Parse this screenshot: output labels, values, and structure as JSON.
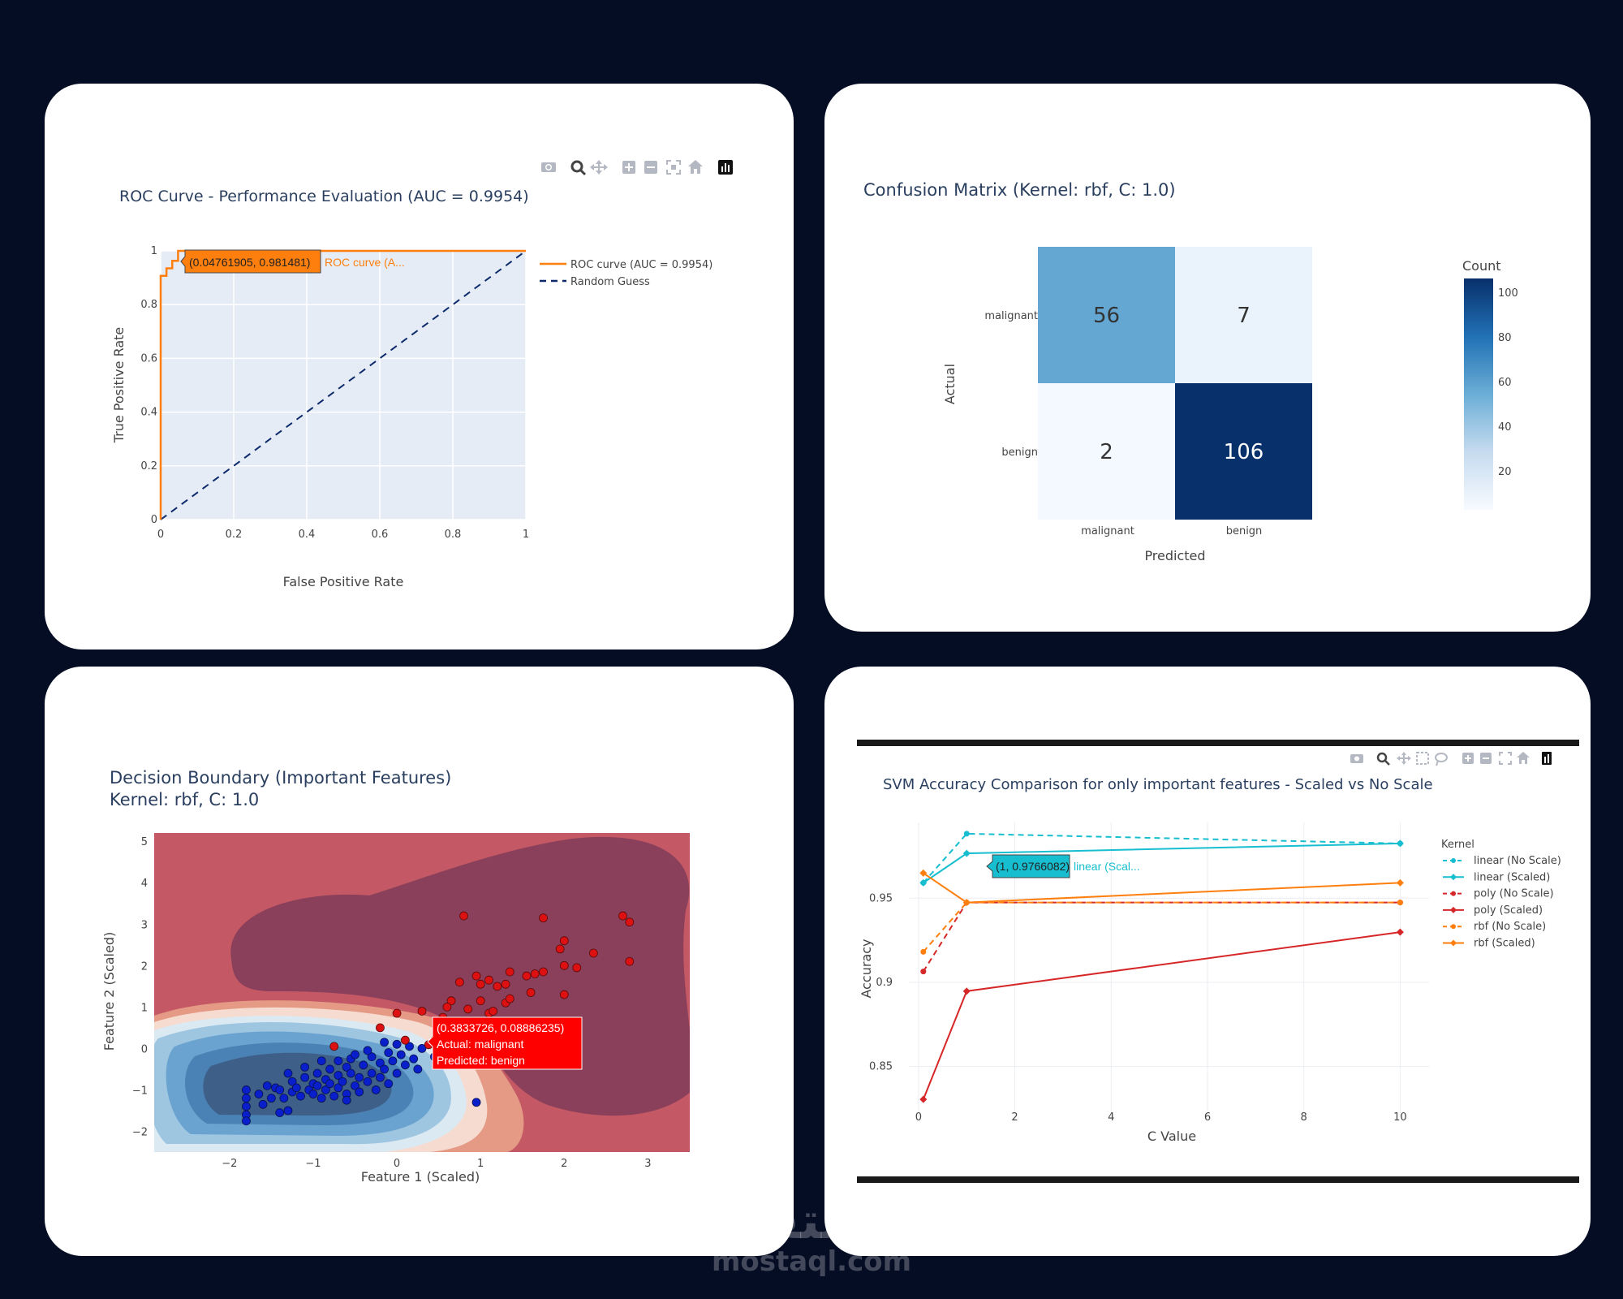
{
  "colors": {
    "background": "#050d24",
    "plot_bg": "#e5ecf6",
    "roc_orange": "#ff7f0e",
    "guess_navy": "#0d2a6b",
    "linear": "#17becf",
    "poly": "#d62728",
    "rbf": "#ff7f0e"
  },
  "toolbar_icons": [
    "camera-icon",
    "zoom-icon",
    "pan-icon",
    "zoom-in-icon",
    "zoom-out-icon",
    "autoscale-icon",
    "home-icon",
    "plotly-logo-icon"
  ],
  "watermark": {
    "arabic": "مستقل",
    "latin": "mostaql.com"
  },
  "charts": [
    {
      "id": "roc",
      "type": "line",
      "title": "ROC Curve - Performance Evaluation (AUC = 0.9954)",
      "xlabel": "False Positive Rate",
      "ylabel": "True Positive Rate",
      "xlim": [
        0,
        1
      ],
      "ylim": [
        0,
        1
      ],
      "xticks": [
        "0",
        "0.2",
        "0.4",
        "0.6",
        "0.8",
        "1"
      ],
      "yticks": [
        "0",
        "0.2",
        "0.4",
        "0.6",
        "0.8",
        "1"
      ],
      "series": [
        {
          "name": "ROC curve (AUC = 0.9954)",
          "x": [
            0,
            0,
            0.0159,
            0.0159,
            0.0317,
            0.0317,
            0.0476,
            0.0476,
            1
          ],
          "y": [
            0,
            0.907,
            0.907,
            0.935,
            0.935,
            0.963,
            0.963,
            1.0,
            1.0
          ]
        },
        {
          "name": "Random Guess",
          "x": [
            0,
            1
          ],
          "y": [
            0,
            1
          ]
        }
      ],
      "hover": {
        "coords": "(0.04761905, 0.981481)",
        "label": "ROC curve (A..."
      }
    },
    {
      "id": "confusion",
      "type": "heatmap",
      "title": "Confusion Matrix (Kernel: rbf, C: 1.0)",
      "xlabel": "Predicted",
      "ylabel": "Actual",
      "x_categories": [
        "malignant",
        "benign"
      ],
      "y_categories": [
        "malignant",
        "benign"
      ],
      "values": [
        [
          56,
          7
        ],
        [
          2,
          106
        ]
      ],
      "colorbar": {
        "title": "Count",
        "ticks": [
          "100",
          "80",
          "60",
          "40",
          "20"
        ]
      }
    },
    {
      "id": "decision",
      "type": "scatter",
      "title": "Decision Boundary (Important Features)",
      "subtitle": "Kernel: rbf, C: 1.0",
      "xlabel": "Feature 1 (Scaled)",
      "ylabel": "Feature 2 (Scaled)",
      "xlim": [
        -2.9,
        3.5
      ],
      "ylim": [
        -2.5,
        5.2
      ],
      "xticks": [
        "−2",
        "−1",
        "0",
        "1",
        "2",
        "3"
      ],
      "yticks": [
        "−2",
        "−1",
        "0",
        "1",
        "2",
        "3",
        "4",
        "5"
      ],
      "malignant_points": [
        [
          0.8,
          3.2
        ],
        [
          1.75,
          3.15
        ],
        [
          2.7,
          3.2
        ],
        [
          2.78,
          3.05
        ],
        [
          2.0,
          2.6
        ],
        [
          1.95,
          2.4
        ],
        [
          2.35,
          2.3
        ],
        [
          2.78,
          2.1
        ],
        [
          1.75,
          1.85
        ],
        [
          2.0,
          2.0
        ],
        [
          2.15,
          1.95
        ],
        [
          1.35,
          1.85
        ],
        [
          1.55,
          1.75
        ],
        [
          1.65,
          1.8
        ],
        [
          0.95,
          1.75
        ],
        [
          0.75,
          1.6
        ],
        [
          1.0,
          1.55
        ],
        [
          1.1,
          1.65
        ],
        [
          1.3,
          1.55
        ],
        [
          1.2,
          1.5
        ],
        [
          0.65,
          1.15
        ],
        [
          1.0,
          1.15
        ],
        [
          1.3,
          1.1
        ],
        [
          1.35,
          1.2
        ],
        [
          1.6,
          1.35
        ],
        [
          2.0,
          1.3
        ],
        [
          0.6,
          1.0
        ],
        [
          0.85,
          0.95
        ],
        [
          1.1,
          0.85
        ],
        [
          1.15,
          0.9
        ],
        [
          0.3,
          0.9
        ],
        [
          0.55,
          0.75
        ],
        [
          0.75,
          0.6
        ],
        [
          0.9,
          0.55
        ],
        [
          0.0,
          0.85
        ],
        [
          -0.2,
          0.5
        ],
        [
          0.1,
          0.2
        ],
        [
          -0.75,
          0.05
        ],
        [
          0.45,
          0.2
        ],
        [
          0.38,
          0.09
        ]
      ],
      "benign_points": [
        [
          -1.8,
          -1.0
        ],
        [
          -1.8,
          -1.2
        ],
        [
          -1.8,
          -1.4
        ],
        [
          -1.8,
          -1.6
        ],
        [
          -1.8,
          -1.75
        ],
        [
          -1.65,
          -1.1
        ],
        [
          -1.5,
          -1.2
        ],
        [
          -1.45,
          -0.95
        ],
        [
          -1.4,
          -1.0
        ],
        [
          -1.35,
          -1.2
        ],
        [
          -1.3,
          -1.5
        ],
        [
          -1.25,
          -1.05
        ],
        [
          -1.25,
          -0.8
        ],
        [
          -1.2,
          -0.95
        ],
        [
          -1.15,
          -1.15
        ],
        [
          -1.1,
          -0.7
        ],
        [
          -1.05,
          -1.0
        ],
        [
          -1.0,
          -0.85
        ],
        [
          -1.0,
          -1.1
        ],
        [
          -0.95,
          -0.6
        ],
        [
          -0.95,
          -0.9
        ],
        [
          -0.9,
          -1.2
        ],
        [
          -0.85,
          -0.75
        ],
        [
          -0.85,
          -1.0
        ],
        [
          -0.8,
          -0.5
        ],
        [
          -0.8,
          -0.85
        ],
        [
          -0.75,
          -1.15
        ],
        [
          -0.7,
          -0.3
        ],
        [
          -0.7,
          -0.65
        ],
        [
          -0.7,
          -0.95
        ],
        [
          -0.65,
          -0.8
        ],
        [
          -0.6,
          -0.45
        ],
        [
          -0.6,
          -1.1
        ],
        [
          -0.55,
          -0.25
        ],
        [
          -0.55,
          -0.6
        ],
        [
          -0.5,
          -0.9
        ],
        [
          -0.5,
          -0.15
        ],
        [
          -0.45,
          -0.7
        ],
        [
          -0.45,
          -1.05
        ],
        [
          -0.4,
          -0.4
        ],
        [
          -0.35,
          -0.8
        ],
        [
          -0.3,
          -0.2
        ],
        [
          -0.3,
          -0.6
        ],
        [
          -0.25,
          -1.0
        ],
        [
          -0.2,
          -0.35
        ],
        [
          -0.2,
          -0.7
        ],
        [
          -0.15,
          -0.5
        ],
        [
          -0.1,
          -0.1
        ],
        [
          -0.1,
          -0.85
        ],
        [
          -0.05,
          -0.3
        ],
        [
          0.0,
          -0.6
        ],
        [
          0.05,
          -0.15
        ],
        [
          0.1,
          -0.4
        ],
        [
          0.15,
          0.05
        ],
        [
          0.2,
          -0.25
        ],
        [
          0.25,
          -0.5
        ],
        [
          -0.15,
          0.15
        ],
        [
          -0.35,
          -0.05
        ],
        [
          0.0,
          0.1
        ],
        [
          0.3,
          0.0
        ],
        [
          0.45,
          -0.2
        ],
        [
          0.95,
          -1.3
        ],
        [
          -0.9,
          -0.3
        ],
        [
          -1.1,
          -0.45
        ],
        [
          -1.3,
          -0.6
        ],
        [
          -1.55,
          -0.9
        ],
        [
          -1.6,
          -1.35
        ],
        [
          -1.4,
          -1.55
        ],
        [
          -0.6,
          -1.25
        ]
      ],
      "hover": {
        "coords": "(0.3833726, 0.08886235)",
        "actual": "Actual: malignant",
        "predicted": "Predicted: benign"
      }
    },
    {
      "id": "accuracy",
      "type": "line",
      "title": "SVM Accuracy Comparison for only important features - Scaled vs No Scale",
      "xlabel": "C Value",
      "ylabel": "Accuracy",
      "legend_title": "Kernel",
      "xlim": [
        -0.2,
        10.6
      ],
      "ylim": [
        0.815,
        0.995
      ],
      "xticks": [
        "0",
        "2",
        "4",
        "6",
        "8",
        "10"
      ],
      "yticks": [
        "0.85",
        "0.9",
        "0.95"
      ],
      "x": [
        0.1,
        1,
        10
      ],
      "series": [
        {
          "name": "linear (No Scale)",
          "dash": true,
          "color": "#17becf",
          "values": [
            0.9591,
            0.9883,
            0.9825
          ]
        },
        {
          "name": "linear (Scaled)",
          "dash": false,
          "color": "#17becf",
          "values": [
            0.9591,
            0.9766,
            0.9825
          ]
        },
        {
          "name": "poly (No Scale)",
          "dash": true,
          "color": "#d62728",
          "values": [
            0.9064,
            0.9474,
            0.9474
          ]
        },
        {
          "name": "poly (Scaled)",
          "dash": false,
          "color": "#d62728",
          "values": [
            0.8304,
            0.8947,
            0.9298
          ]
        },
        {
          "name": "rbf (No Scale)",
          "dash": true,
          "color": "#ff7f0e",
          "values": [
            0.9181,
            0.9474,
            0.9474
          ]
        },
        {
          "name": "rbf (Scaled)",
          "dash": false,
          "color": "#ff7f0e",
          "values": [
            0.9649,
            0.9474,
            0.9591
          ]
        }
      ],
      "hover": {
        "coords": "(1, 0.9766082)",
        "label": "linear (Scal..."
      }
    }
  ]
}
